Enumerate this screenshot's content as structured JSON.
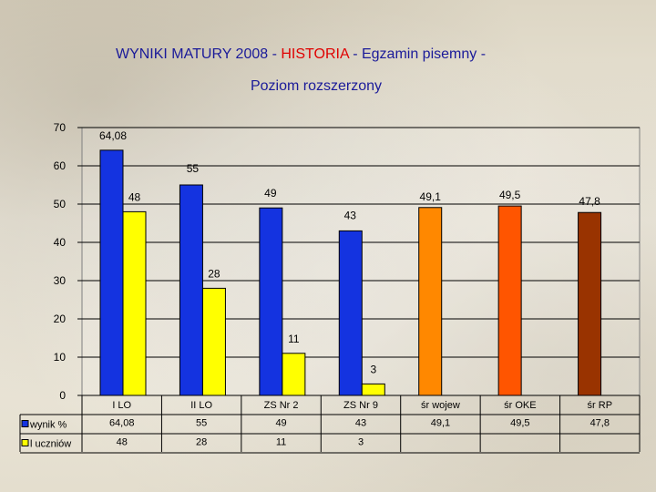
{
  "title": {
    "part1": "WYNIKI MATURY 2008 - ",
    "highlight": "HISTORIA",
    "part2": " - Egzamin pisemny -"
  },
  "subtitle": "Poziom rozszerzony",
  "chart_data": {
    "type": "bar",
    "categories": [
      "I LO",
      "II LO",
      "ZS Nr 2",
      "ZS Nr 9",
      "śr  wojew",
      "śr  OKE",
      "śr  RP"
    ],
    "ylim": [
      0,
      70
    ],
    "yticks": [
      0,
      10,
      20,
      30,
      40,
      50,
      60,
      70
    ],
    "grid": true,
    "legend": "table-left",
    "series": [
      {
        "name": "wynik %",
        "values": [
          64.08,
          55,
          49,
          43,
          49.1,
          49.5,
          47.8
        ],
        "labels": [
          "64,08",
          "55",
          "49",
          "43",
          "49,1",
          "49,5",
          "47,8"
        ],
        "colors": [
          "#1433e0",
          "#1433e0",
          "#1433e0",
          "#1433e0",
          "#ff8800",
          "#ff5500",
          "#993300"
        ]
      },
      {
        "name": "l uczniów",
        "values": [
          48,
          28,
          11,
          3,
          null,
          null,
          null
        ],
        "labels": [
          "48",
          "28",
          "11",
          "3",
          "",
          "",
          ""
        ],
        "colors": [
          "#ffff00",
          "#ffff00",
          "#ffff00",
          "#ffff00",
          "#ffff00",
          "#ffff00",
          "#ffff00"
        ]
      }
    ],
    "table": {
      "rows": [
        {
          "label": "wynik %",
          "legend_color": "#1433e0",
          "cells": [
            "64,08",
            "55",
            "49",
            "43",
            "49,1",
            "49,5",
            "47,8"
          ]
        },
        {
          "label": "l uczniów",
          "legend_color": "#ffff00",
          "cells": [
            "48",
            "28",
            "11",
            "3",
            "",
            "",
            ""
          ]
        }
      ]
    }
  }
}
